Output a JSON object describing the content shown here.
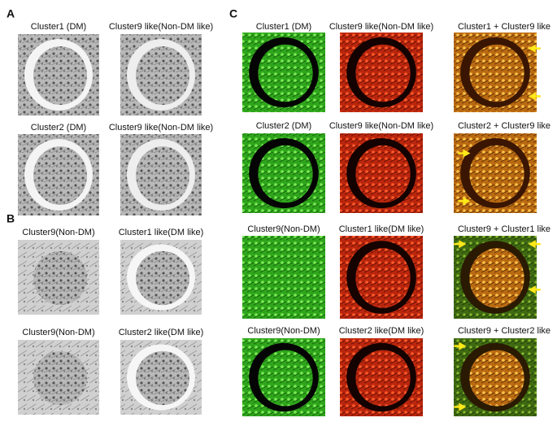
{
  "panels": [
    {
      "label": "A",
      "titles": [
        "Cluster1 (DM)",
        "Cluster9 like(Non-DM like)",
        "Cluster2 (DM)",
        "Cluster9 like(Non-DM like)"
      ]
    },
    {
      "label": "B",
      "titles": [
        "Cluster9(Non-DM)",
        "Cluster1 like(DM like)",
        "Cluster9(Non-DM)",
        "Cluster2 like(DM like)"
      ]
    },
    {
      "label": "C",
      "titles": [
        "Cluster1 (DM)",
        "Cluster9 like(Non-DM like)",
        "Cluster1 + Cluster9 like",
        "Cluster2 (DM)",
        "Cluster9 like(Non-DM like)",
        "Cluster2 + Cluster9 like",
        "Cluster9(Non-DM)",
        "Cluster1 like(DM like)",
        "Cluster9 + Cluster1 like",
        "Cluster9(Non-DM)",
        "Cluster2 like(DM like)",
        "Cluster9 + Cluster2 like"
      ]
    }
  ]
}
